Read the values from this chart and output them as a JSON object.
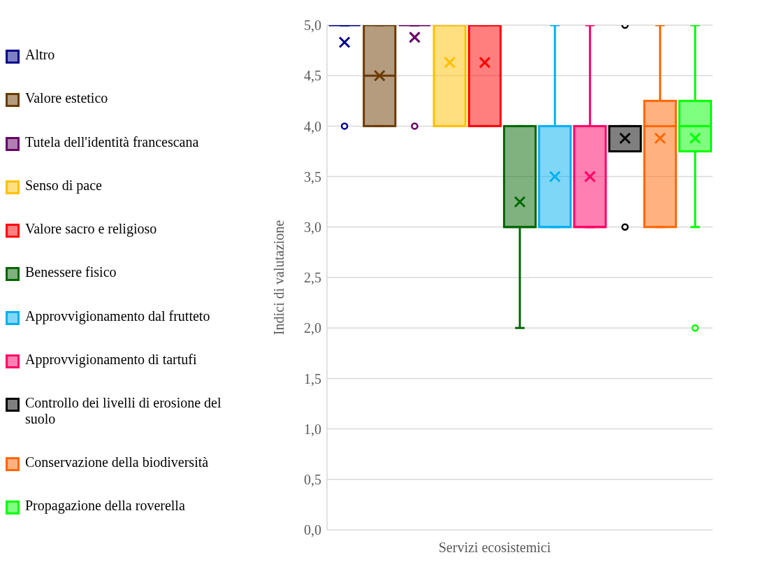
{
  "chart_data": {
    "type": "box",
    "xlabel": "Servizi ecosistemici",
    "ylabel": "Indici di valutazione",
    "categories": [
      null
    ],
    "ylim": [
      0,
      5
    ],
    "yticks": [
      {
        "value": 0,
        "label": "0,0"
      },
      {
        "value": 0.5,
        "label": "0,5"
      },
      {
        "value": 1,
        "label": "1,0"
      },
      {
        "value": 1.5,
        "label": "1,5"
      },
      {
        "value": 2,
        "label": "2,0"
      },
      {
        "value": 2.5,
        "label": "2,5"
      },
      {
        "value": 3,
        "label": "3,0"
      },
      {
        "value": 3.5,
        "label": "3,5"
      },
      {
        "value": 4,
        "label": "4,0"
      },
      {
        "value": 4.5,
        "label": "4,5"
      },
      {
        "value": 5,
        "label": "5,0"
      }
    ],
    "grid": "y",
    "legend": "left",
    "series": [
      {
        "name": "Altro",
        "color": "#00008b",
        "boxes": [
          {
            "low": 5,
            "q1": 5,
            "median": 5,
            "q3": 5,
            "high": 5,
            "mean": 4.83,
            "outliers": [
              4
            ]
          }
        ]
      },
      {
        "name": "Valore estetico",
        "color": "#6b3a00",
        "boxes": [
          {
            "low": 4,
            "q1": 4,
            "median": 4.5,
            "q3": 5,
            "high": 5,
            "mean": 4.5
          }
        ]
      },
      {
        "name": "Tutela dell'identità francescana",
        "color": "#660066",
        "boxes": [
          {
            "low": 5,
            "q1": 5,
            "median": 5,
            "q3": 5,
            "high": 5,
            "mean": 4.88,
            "outliers": [
              4
            ]
          }
        ]
      },
      {
        "name": "Senso di pace",
        "color": "#ffc000",
        "boxes": [
          {
            "low": 4,
            "q1": 4,
            "median": 5,
            "q3": 5,
            "high": 5,
            "mean": 4.63
          }
        ]
      },
      {
        "name": "Valore sacro e religioso",
        "color": "#ff0000",
        "boxes": [
          {
            "low": 4,
            "q1": 4,
            "median": 5,
            "q3": 5,
            "high": 5,
            "mean": 4.63
          }
        ]
      },
      {
        "name": "Benessere fisico",
        "color": "#006600",
        "boxes": [
          {
            "low": 2,
            "q1": 3,
            "median": 3,
            "q3": 4,
            "high": 4,
            "mean": 3.25
          }
        ]
      },
      {
        "name": "Approvvigionamento dal frutteto",
        "color": "#00b0f0",
        "boxes": [
          {
            "low": 3,
            "q1": 3,
            "median": 3,
            "q3": 4,
            "high": 5,
            "mean": 3.5
          }
        ]
      },
      {
        "name": "Approvvigionamento di tartufi",
        "color": "#ff0066",
        "boxes": [
          {
            "low": 3,
            "q1": 3,
            "median": 3,
            "q3": 4,
            "high": 5,
            "mean": 3.5
          }
        ]
      },
      {
        "name": "Controllo dei livelli di erosione del suolo",
        "color": "#000000",
        "boxes": [
          {
            "low": 3.75,
            "q1": 3.75,
            "median": 4,
            "q3": 4,
            "high": 4,
            "mean": 3.88,
            "outliers": [
              3,
              5
            ]
          }
        ]
      },
      {
        "name": "Conservazione della biodiversità",
        "color": "#ff6600",
        "boxes": [
          {
            "low": 3,
            "q1": 3,
            "median": 4,
            "q3": 4.25,
            "high": 5,
            "mean": 3.88
          }
        ]
      },
      {
        "name": "Propagazione della roverella",
        "color": "#00ff00",
        "boxes": [
          {
            "low": 3,
            "q1": 3.75,
            "median": 4,
            "q3": 4.25,
            "high": 5,
            "mean": 3.88,
            "outliers": [
              2
            ]
          }
        ]
      }
    ]
  }
}
